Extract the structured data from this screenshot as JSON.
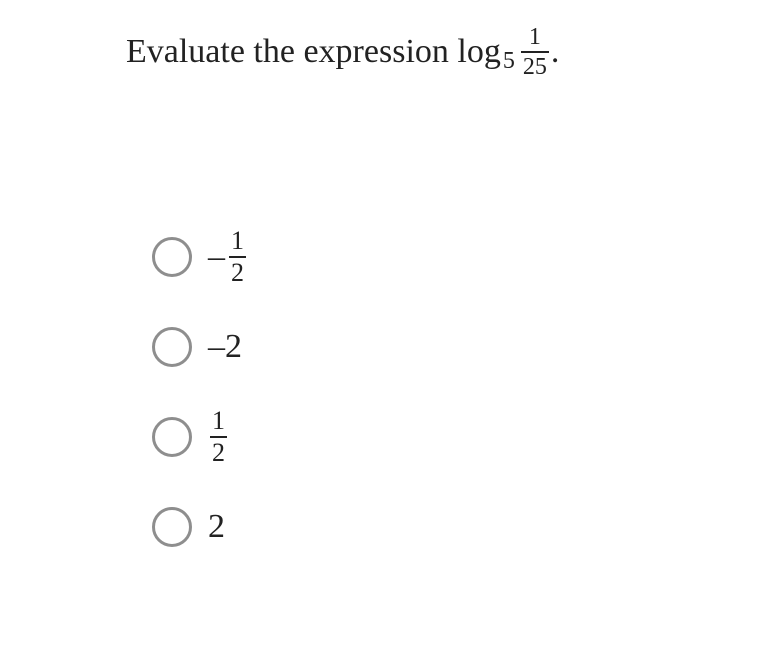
{
  "question": {
    "prefix_text": "Evaluate the expression log",
    "log_base": "5",
    "argument_numerator": "1",
    "argument_denominator": "25",
    "trailing_period": "."
  },
  "options": [
    {
      "type": "neg_fraction",
      "sign": "–",
      "numerator": "1",
      "denominator": "2"
    },
    {
      "type": "plain",
      "text": "–2"
    },
    {
      "type": "fraction",
      "numerator": "1",
      "denominator": "2"
    },
    {
      "type": "plain",
      "text": "2"
    }
  ],
  "style": {
    "text_color": "#222222",
    "radio_border_color": "#8e8e8e",
    "background": "#ffffff",
    "question_fontsize": 34,
    "option_fontsize": 34,
    "fraction_fontsize": 26
  }
}
